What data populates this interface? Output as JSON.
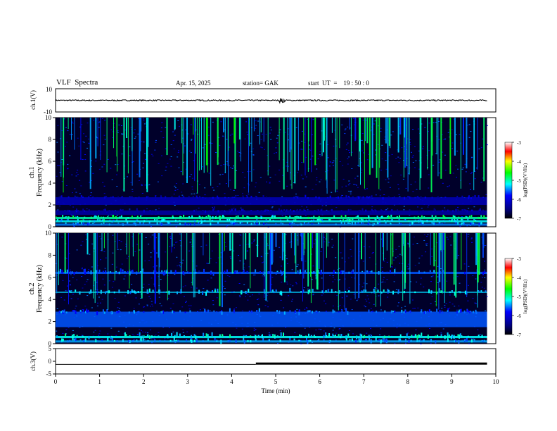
{
  "header": {
    "title": "VLF  Spectra",
    "date": "Apr. 15, 2025",
    "station": "station= GAK",
    "start": "start  UT  =    19 : 50 : 0"
  },
  "chart_data": [
    {
      "type": "line",
      "name": "ch1-waveform",
      "ylabel": "ch.1(V)",
      "ylim": [
        -10,
        10
      ],
      "yticks": [
        10,
        -10
      ],
      "xlim": [
        0,
        10
      ],
      "baseline": 0,
      "noise_amplitude": 0.5,
      "spike": {
        "x": 5.15,
        "amplitude": 2
      }
    },
    {
      "type": "heatmap",
      "name": "ch1-spectrogram",
      "ylabel_lines": [
        "ch.1",
        "Frequency  (kHz)"
      ],
      "ylim": [
        0,
        10
      ],
      "yticks": [
        0,
        2,
        4,
        6,
        8,
        10
      ],
      "xlim": [
        0,
        9.8
      ],
      "colorbar": {
        "label": "log(PSD)(V²/Hz)",
        "ticks": [
          -3,
          -4,
          -5,
          -6,
          -7
        ],
        "range": [
          -7,
          -3
        ]
      },
      "bands_khz": [
        {
          "from": 0.1,
          "to": 0.3,
          "level": -5.5
        },
        {
          "from": 0.4,
          "to": 0.6,
          "level": -5.2
        },
        {
          "from": 0.7,
          "to": 0.9,
          "level": -5.0
        },
        {
          "from": 1.1,
          "to": 1.5,
          "level": -6.3
        },
        {
          "from": 2.0,
          "to": 2.7,
          "level": -6.2
        }
      ]
    },
    {
      "type": "heatmap",
      "name": "ch2-spectrogram",
      "ylabel_lines": [
        "ch.2",
        "Frequency  (kHz)"
      ],
      "ylim": [
        0,
        10
      ],
      "yticks": [
        0,
        2,
        4,
        6,
        8,
        10
      ],
      "xlim": [
        0,
        9.8
      ],
      "colorbar": {
        "label": "log(PSD)(V²/Hz)",
        "ticks": [
          -3,
          -4,
          -5,
          -6,
          -7
        ],
        "range": [
          -7,
          -3
        ]
      },
      "bands_khz": [
        {
          "from": 0.1,
          "to": 0.3,
          "level": -5.4
        },
        {
          "from": 0.5,
          "to": 0.7,
          "level": -5.2
        },
        {
          "from": 1.5,
          "to": 2.9,
          "level": -5.6
        },
        {
          "from": 4.6,
          "to": 4.7,
          "level": -5.3
        },
        {
          "from": 6.3,
          "to": 6.5,
          "level": -5.6
        }
      ]
    },
    {
      "type": "line",
      "name": "ch3-signal",
      "ylabel": "ch.3(V)",
      "ylim": [
        -5,
        5
      ],
      "yticks": [
        5,
        0,
        -5
      ],
      "xlim": [
        0,
        10
      ],
      "xticks": [
        0,
        1,
        2,
        3,
        4,
        5,
        6,
        7,
        8,
        9,
        10
      ],
      "xlabel": "Time  (min)",
      "segments": [
        {
          "x_start": 0,
          "x_end": 4.55,
          "y": -1.2
        },
        {
          "x_start": 4.55,
          "x_end": 9.8,
          "y": -0.9
        }
      ]
    }
  ]
}
